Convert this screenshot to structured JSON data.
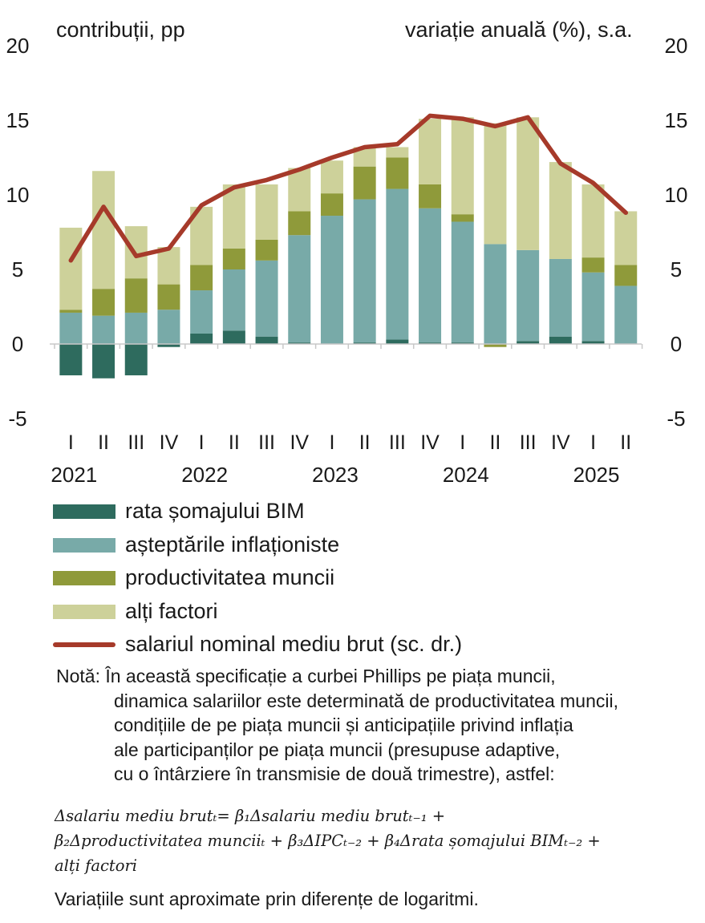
{
  "chart_data": {
    "type": "bar",
    "stacked": true,
    "y_left_label": "contribuții, pp",
    "y_right_label": "variație anuală (%), s.a.",
    "ylim": [
      -5,
      20
    ],
    "yticks": [
      "20",
      "15",
      "10",
      "5",
      "0",
      "-5"
    ],
    "categories": [
      "I",
      "II",
      "III",
      "IV",
      "I",
      "II",
      "III",
      "IV",
      "I",
      "II",
      "III",
      "IV",
      "I",
      "II",
      "III",
      "IV",
      "I",
      "II"
    ],
    "years": [
      {
        "label": "2021",
        "start": 0
      },
      {
        "label": "2022",
        "start": 4
      },
      {
        "label": "2023",
        "start": 8
      },
      {
        "label": "2024",
        "start": 12
      },
      {
        "label": "2025",
        "start": 16
      }
    ],
    "series": [
      {
        "name": "rata șomajului BIM",
        "color": "#2e6b5e",
        "values": [
          -2.1,
          -2.3,
          -2.1,
          -0.2,
          0.7,
          0.9,
          0.5,
          0.1,
          0.0,
          0.1,
          0.3,
          0.1,
          0.1,
          0.0,
          0.2,
          0.5,
          0.2,
          0.0
        ]
      },
      {
        "name": "așteptările inflaționiste",
        "color": "#78aaa8",
        "values": [
          2.1,
          1.9,
          2.1,
          2.3,
          2.9,
          4.1,
          5.1,
          7.2,
          8.6,
          9.6,
          10.1,
          9.0,
          8.1,
          6.7,
          6.1,
          5.2,
          4.6,
          3.9
        ]
      },
      {
        "name": "productivitatea muncii",
        "color": "#8f9a3a",
        "values": [
          0.2,
          1.8,
          2.3,
          1.7,
          1.7,
          1.4,
          1.4,
          1.6,
          1.5,
          2.2,
          2.1,
          1.6,
          0.5,
          -0.2,
          0.0,
          0.0,
          1.0,
          1.4
        ]
      },
      {
        "name": "alți factori",
        "color": "#cdd19a",
        "values": [
          5.5,
          7.9,
          3.5,
          2.5,
          3.9,
          4.3,
          3.7,
          2.9,
          2.2,
          1.3,
          0.7,
          4.4,
          6.5,
          8.1,
          8.9,
          6.5,
          4.9,
          3.6
        ]
      }
    ],
    "line": {
      "name": "salariul nominal mediu brut (sc. dr.)",
      "color": "#a63a2a",
      "values": [
        5.6,
        9.2,
        5.9,
        6.4,
        9.3,
        10.5,
        11.0,
        11.7,
        12.5,
        13.2,
        13.4,
        15.3,
        15.1,
        14.6,
        15.2,
        12.1,
        10.8,
        8.8
      ]
    },
    "legend": "bottom"
  },
  "note": {
    "lines": [
      "Notă: În această specificație a curbei Phillips pe piața muncii,",
      "dinamica salariilor este determinată de productivitatea muncii,",
      "condițiile de pe piața muncii și anticipațiile privind inflația",
      "ale participanților pe piața muncii (presupuse adaptive,",
      "cu o întârziere în transmisie de două trimestre), astfel:"
    ],
    "formula": [
      "Δsalariu mediu brutₜ= β₁Δsalariu mediu brutₜ₋₁ +",
      "β₂Δproductivitatea munciiₜ + β₃ΔIPCₜ₋₂ +  β₄Δrata șomajului BIMₜ₋₂ +",
      "alți factori"
    ],
    "final": "Variațiile sunt aproximate prin diferențe de logaritmi."
  }
}
